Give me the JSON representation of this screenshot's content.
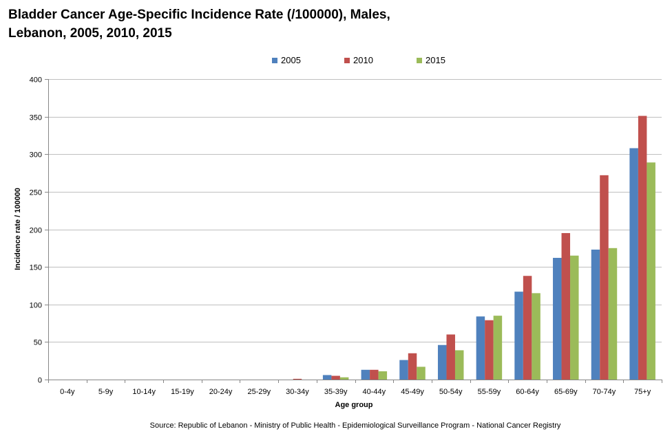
{
  "chart_data": {
    "type": "bar",
    "title": "Bladder Cancer Age-Specific Incidence Rate (/100000), Males, Lebanon, 2005, 2010, 2015",
    "title_lines": [
      "Bladder Cancer Age-Specific Incidence Rate (/100000), Males,",
      "Lebanon, 2005, 2010, 2015"
    ],
    "xlabel": "Age group",
    "ylabel": "Incidence  rate / 100000",
    "ylim": [
      0,
      400
    ],
    "yticks": [
      0,
      50,
      100,
      150,
      200,
      250,
      300,
      350,
      400
    ],
    "grid": true,
    "legend_position": "top-center",
    "categories": [
      "0-4y",
      "5-9y",
      "10-14y",
      "15-19y",
      "20-24y",
      "25-29y",
      "30-34y",
      "35-39y",
      "40-44y",
      "45-49y",
      "50-54y",
      "55-59y",
      "60-64y",
      "65-69y",
      "70-74y",
      "75+y"
    ],
    "series": [
      {
        "name": "2005",
        "color": "#4f81bd",
        "values": [
          0,
          0,
          0,
          0,
          0,
          0,
          0,
          6,
          13,
          26,
          46,
          84,
          117,
          162,
          173,
          308
        ]
      },
      {
        "name": "2010",
        "color": "#c0504d",
        "values": [
          0,
          0,
          0,
          0,
          0,
          0,
          1,
          5,
          13,
          35,
          60,
          79,
          138,
          195,
          272,
          351
        ]
      },
      {
        "name": "2015",
        "color": "#9bbb59",
        "values": [
          0,
          0,
          0,
          0,
          0,
          0,
          0,
          3,
          11,
          17,
          39,
          85,
          115,
          165,
          175,
          289
        ]
      }
    ],
    "source": "Source: Republic of Lebanon - Ministry of Public Health - Epidemiological Surveillance Program - National Cancer Registry"
  }
}
